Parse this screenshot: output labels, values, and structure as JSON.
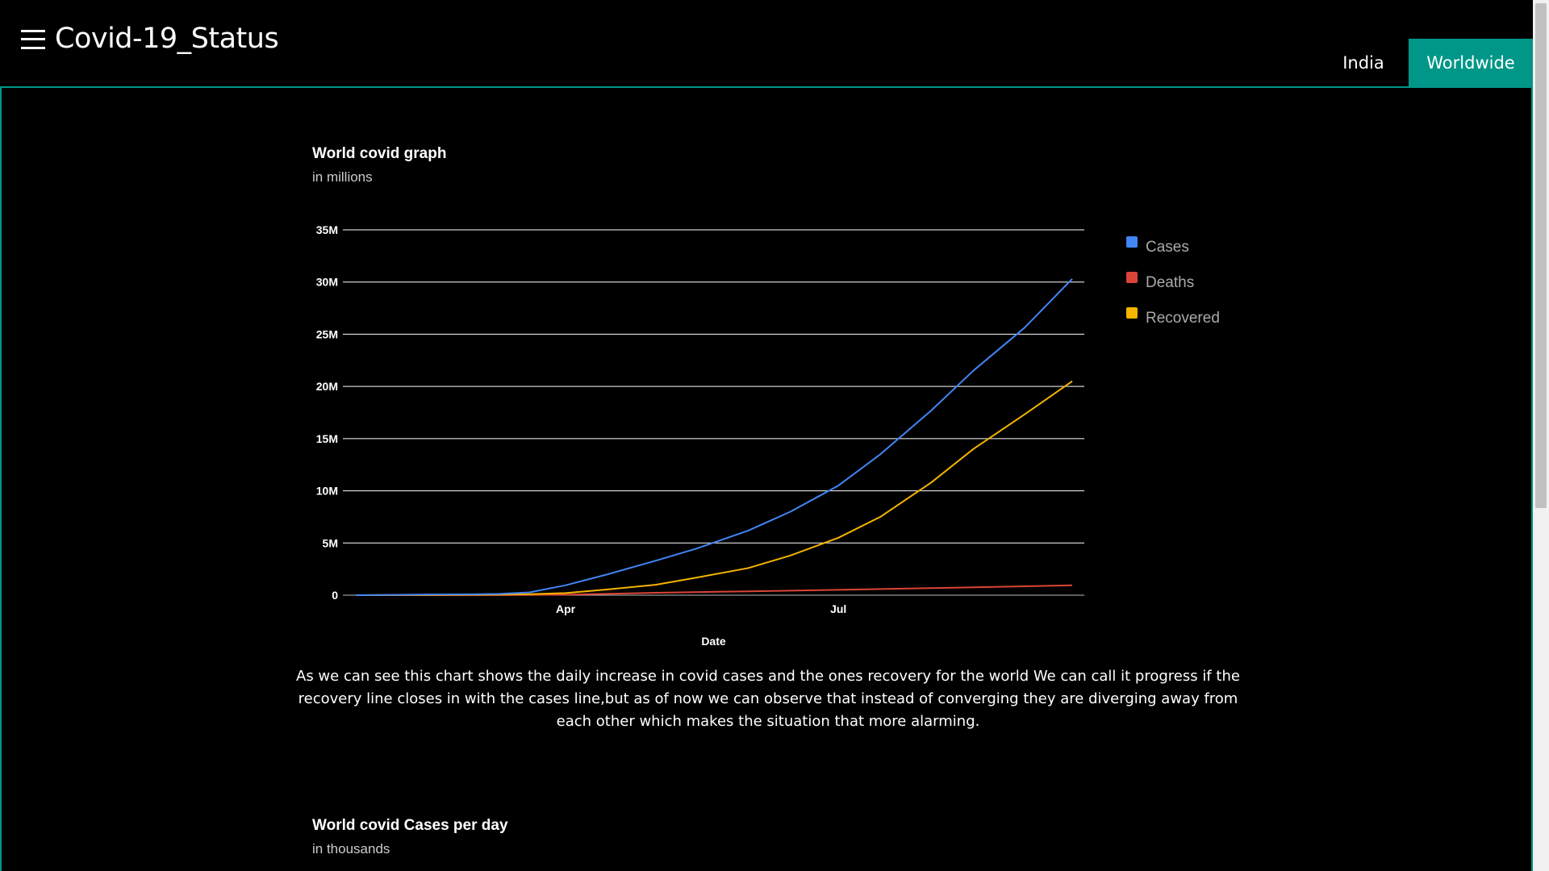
{
  "header": {
    "brand": "Covid-19_Status",
    "menu_icon": "hamburger-menu-icon",
    "tabs": [
      {
        "label": "India",
        "active": false
      },
      {
        "label": "Worldwide",
        "active": true
      }
    ],
    "active_color": "#009688"
  },
  "chart1": {
    "title": "World covid graph",
    "subtitle": "in millions"
  },
  "chart_data": {
    "type": "line",
    "title": "World covid graph",
    "subtitle": "in millions",
    "xlabel": "Date",
    "ylabel": "",
    "x_ticks": [
      "Apr",
      "Jul"
    ],
    "y_ticks": [
      "0",
      "5M",
      "10M",
      "15M",
      "20M",
      "25M",
      "30M",
      "35M"
    ],
    "ylim": [
      0,
      35000000
    ],
    "x_domain": [
      "2020-01-22",
      "2020-09-17"
    ],
    "grid": true,
    "legend_position": "right",
    "series": [
      {
        "name": "Cases",
        "color": "#4285f4",
        "points": [
          [
            "2020-01-22",
            0
          ],
          [
            "2020-02-15",
            70000
          ],
          [
            "2020-03-01",
            88000
          ],
          [
            "2020-03-10",
            120000
          ],
          [
            "2020-03-20",
            270000
          ],
          [
            "2020-04-01",
            950000
          ],
          [
            "2020-04-15",
            2000000
          ],
          [
            "2020-05-01",
            3300000
          ],
          [
            "2020-05-15",
            4500000
          ],
          [
            "2020-06-01",
            6200000
          ],
          [
            "2020-06-15",
            8000000
          ],
          [
            "2020-07-01",
            10500000
          ],
          [
            "2020-07-15",
            13500000
          ],
          [
            "2020-08-01",
            17700000
          ],
          [
            "2020-08-15",
            21500000
          ],
          [
            "2020-09-01",
            25600000
          ],
          [
            "2020-09-17",
            30300000
          ]
        ]
      },
      {
        "name": "Deaths",
        "color": "#db4437",
        "points": [
          [
            "2020-01-22",
            0
          ],
          [
            "2020-03-10",
            4000
          ],
          [
            "2020-04-01",
            50000
          ],
          [
            "2020-05-01",
            230000
          ],
          [
            "2020-06-01",
            370000
          ],
          [
            "2020-07-01",
            510000
          ],
          [
            "2020-08-01",
            680000
          ],
          [
            "2020-09-01",
            850000
          ],
          [
            "2020-09-17",
            950000
          ]
        ]
      },
      {
        "name": "Recovered",
        "color": "#f4b400",
        "points": [
          [
            "2020-01-22",
            0
          ],
          [
            "2020-03-01",
            40000
          ],
          [
            "2020-03-20",
            90000
          ],
          [
            "2020-04-01",
            200000
          ],
          [
            "2020-04-15",
            550000
          ],
          [
            "2020-05-01",
            1000000
          ],
          [
            "2020-05-15",
            1700000
          ],
          [
            "2020-06-01",
            2600000
          ],
          [
            "2020-06-15",
            3800000
          ],
          [
            "2020-07-01",
            5500000
          ],
          [
            "2020-07-15",
            7500000
          ],
          [
            "2020-08-01",
            10800000
          ],
          [
            "2020-08-15",
            14000000
          ],
          [
            "2020-09-01",
            17300000
          ],
          [
            "2020-09-17",
            20500000
          ]
        ]
      }
    ]
  },
  "description": "As we can see this chart shows the daily increase in covid cases and the ones recovery for the world We can call it progress if the recovery line closes in with the cases line,but as of now we can observe that instead of converging they are diverging away from each other which makes the situation that more alarming.",
  "chart2": {
    "title": "World covid Cases per day",
    "subtitle": "in thousands"
  }
}
